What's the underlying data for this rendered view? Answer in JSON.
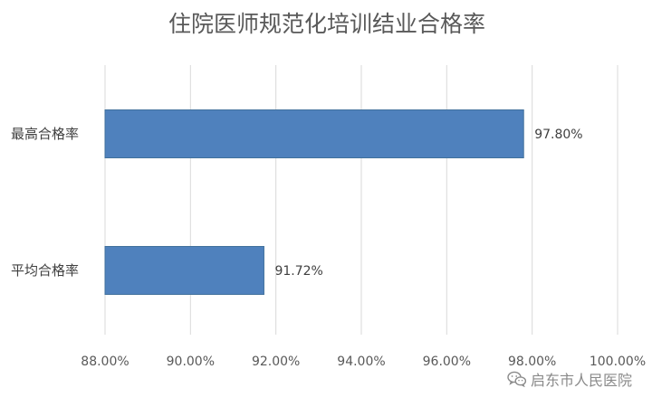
{
  "chart_data": {
    "type": "bar",
    "orientation": "horizontal",
    "title": "住院医师规范化培训结业合格率",
    "categories": [
      "最高合格率",
      "平均合格率"
    ],
    "values": [
      97.8,
      91.72
    ],
    "data_labels": [
      "97.80%",
      "91.72%"
    ],
    "xlim": [
      88,
      100
    ],
    "ticks": [
      88,
      90,
      92,
      94,
      96,
      98,
      100
    ],
    "tick_labels": [
      "88.00%",
      "90.00%",
      "92.00%",
      "94.00%",
      "96.00%",
      "98.00%",
      "100.00%"
    ],
    "grid": true,
    "legend": "none",
    "bar_color": "#4f81bd"
  },
  "watermark": {
    "text": "启东市人民医院",
    "icon": "wechat-icon"
  }
}
